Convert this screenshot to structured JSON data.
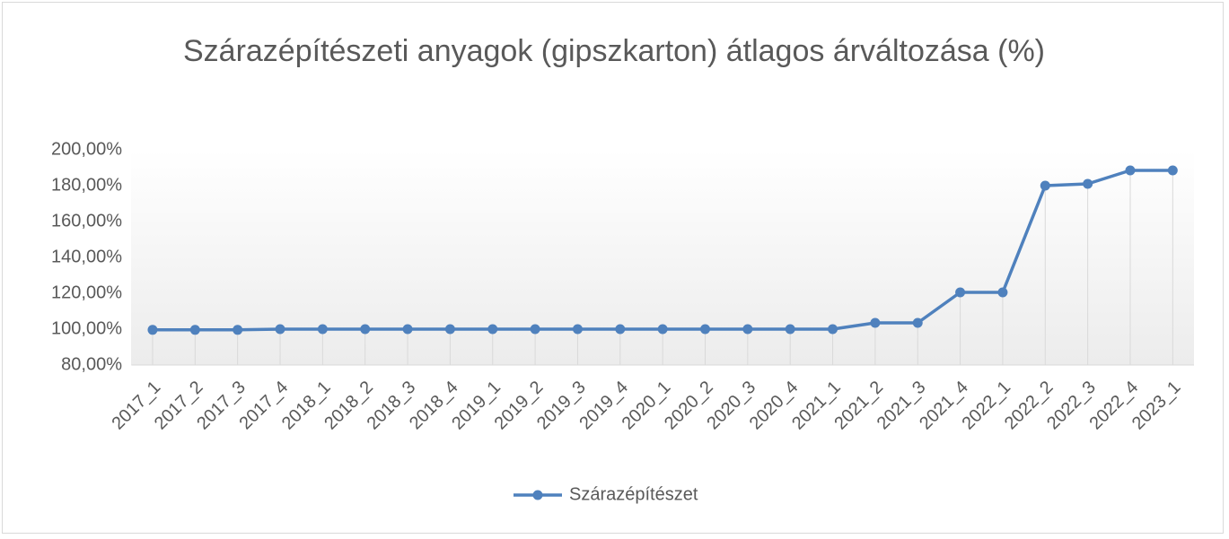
{
  "chart_data": {
    "type": "line",
    "title": "Szárazépítészeti anyagok (gipszkarton) átlagos árváltozása (%)",
    "categories": [
      "2017_1",
      "2017_2",
      "2017_3",
      "2017_4",
      "2018_1",
      "2018_2",
      "2018_3",
      "2018_4",
      "2019_1",
      "2019_2",
      "2019_3",
      "2019_4",
      "2020_1",
      "2020_2",
      "2020_3",
      "2020_4",
      "2021_1",
      "2021_2",
      "2021_3",
      "2021_4",
      "2022_1",
      "2022_2",
      "2022_3",
      "2022_4",
      "2023_1"
    ],
    "series": [
      {
        "name": "Szárazépítészet",
        "color": "#4f81bd",
        "values": [
          99.6,
          99.6,
          99.6,
          100,
          100,
          100,
          100,
          100,
          100,
          100,
          100,
          100,
          100,
          100,
          100,
          100,
          100,
          103.5,
          103.5,
          120.5,
          120.5,
          180,
          181,
          188.5,
          188.5
        ]
      }
    ],
    "ylim": [
      80,
      200
    ],
    "yticks": [
      {
        "value": 80,
        "label": "80,00%"
      },
      {
        "value": 100,
        "label": "100,00%"
      },
      {
        "value": 120,
        "label": "120,00%"
      },
      {
        "value": 140,
        "label": "140,00%"
      },
      {
        "value": 160,
        "label": "160,00%"
      },
      {
        "value": 180,
        "label": "180,00%"
      },
      {
        "value": 200,
        "label": "200,00%"
      }
    ],
    "legend": "bottom"
  }
}
